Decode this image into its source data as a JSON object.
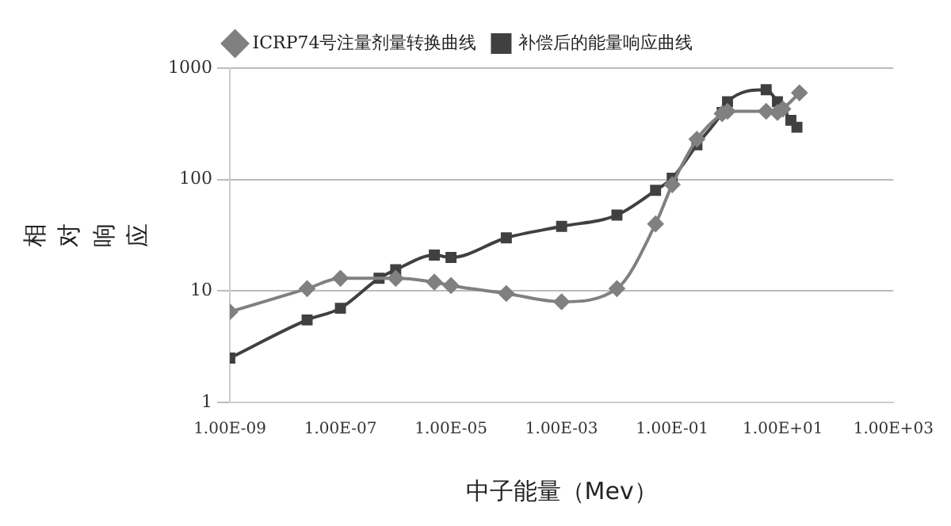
{
  "chart_data": {
    "type": "line",
    "xlabel": "中子能量（Mev）",
    "ylabel": "相对响应",
    "log": "xy",
    "xlim": [
      1e-09,
      1000
    ],
    "ylim": [
      1,
      1000
    ],
    "xticks": [
      {
        "value": 1e-09,
        "label": "1.00E-09"
      },
      {
        "value": 1e-07,
        "label": "1.00E-07"
      },
      {
        "value": 1e-05,
        "label": "1.00E-05"
      },
      {
        "value": 0.001,
        "label": "1.00E-03"
      },
      {
        "value": 0.1,
        "label": "1.00E-01"
      },
      {
        "value": 10,
        "label": "1.00E+01"
      },
      {
        "value": 1000,
        "label": "1.00E+03"
      }
    ],
    "yticks": [
      1,
      10,
      100,
      1000
    ],
    "grid": "y",
    "legend": "top",
    "line_style": "solid",
    "series": [
      {
        "name": "ICRP74号注量剂量转换曲线",
        "color": "#808080",
        "marker": "diamond",
        "x": [
          1e-09,
          2.5e-08,
          1e-07,
          1e-06,
          5e-06,
          1e-05,
          0.0001,
          0.001,
          0.01,
          0.05,
          0.1,
          0.28,
          0.8,
          1,
          5,
          8,
          10,
          20
        ],
        "values": [
          6.5,
          10.5,
          13,
          13,
          12,
          11.2,
          9.5,
          8,
          10.5,
          40,
          90,
          230,
          390,
          410,
          410,
          400,
          430,
          600
        ]
      },
      {
        "name": "补偿后的能量响应曲线",
        "color": "#404040",
        "marker": "square",
        "x": [
          1e-09,
          2.5e-08,
          1e-07,
          5e-07,
          1e-06,
          5e-06,
          1e-05,
          0.0001,
          0.001,
          0.01,
          0.05,
          0.1,
          0.28,
          0.8,
          1,
          5,
          8,
          10,
          14,
          18
        ],
        "values": [
          2.5,
          5.5,
          7,
          13,
          15.5,
          21,
          20,
          30,
          38,
          48,
          80,
          103,
          205,
          400,
          500,
          640,
          500,
          430,
          340,
          295
        ]
      }
    ]
  }
}
